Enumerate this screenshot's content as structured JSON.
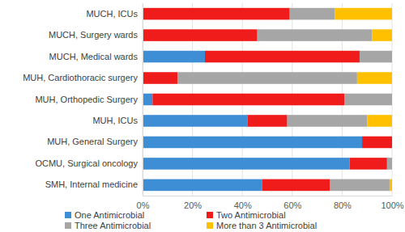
{
  "chart_data": {
    "type": "bar",
    "orientation": "horizontal",
    "stacked": true,
    "grid": true,
    "legend": "bottom",
    "categories": [
      "MUCH, ICUs",
      "MUCH, Surgery wards",
      "MUCH, Medical wards",
      "MUH, Cardiothoracic surgery",
      "MUH, Orthopedic Surgery",
      "MUH, ICUs",
      "MUH, General Surgery",
      "OCMU, Surgical oncology",
      "SMH, Internal medicine"
    ],
    "series": [
      {
        "name": "One Antimicrobial",
        "color": "#3e8ed6",
        "values": [
          0,
          0,
          25,
          0,
          4,
          42,
          88,
          83,
          48
        ]
      },
      {
        "name": "Two Antimicrobial",
        "color": "#f01c1c",
        "values": [
          59,
          46,
          62,
          14,
          77,
          16,
          12,
          15,
          27
        ]
      },
      {
        "name": "Three Antimicrobial",
        "color": "#a6a6a6",
        "values": [
          18,
          46,
          13,
          72,
          19,
          32,
          0,
          2,
          24
        ]
      },
      {
        "name": "More than 3 Antimicrobial",
        "color": "#ffc000",
        "values": [
          23,
          8,
          0,
          14,
          0,
          10,
          0,
          0,
          1
        ]
      }
    ],
    "xlim": [
      0,
      100
    ],
    "xticks": [
      {
        "value": 0,
        "label": "0%"
      },
      {
        "value": 20,
        "label": "20%"
      },
      {
        "value": 40,
        "label": "40%"
      },
      {
        "value": 60,
        "label": "60%"
      },
      {
        "value": 80,
        "label": "80%"
      },
      {
        "value": 100,
        "label": "100%"
      }
    ]
  }
}
